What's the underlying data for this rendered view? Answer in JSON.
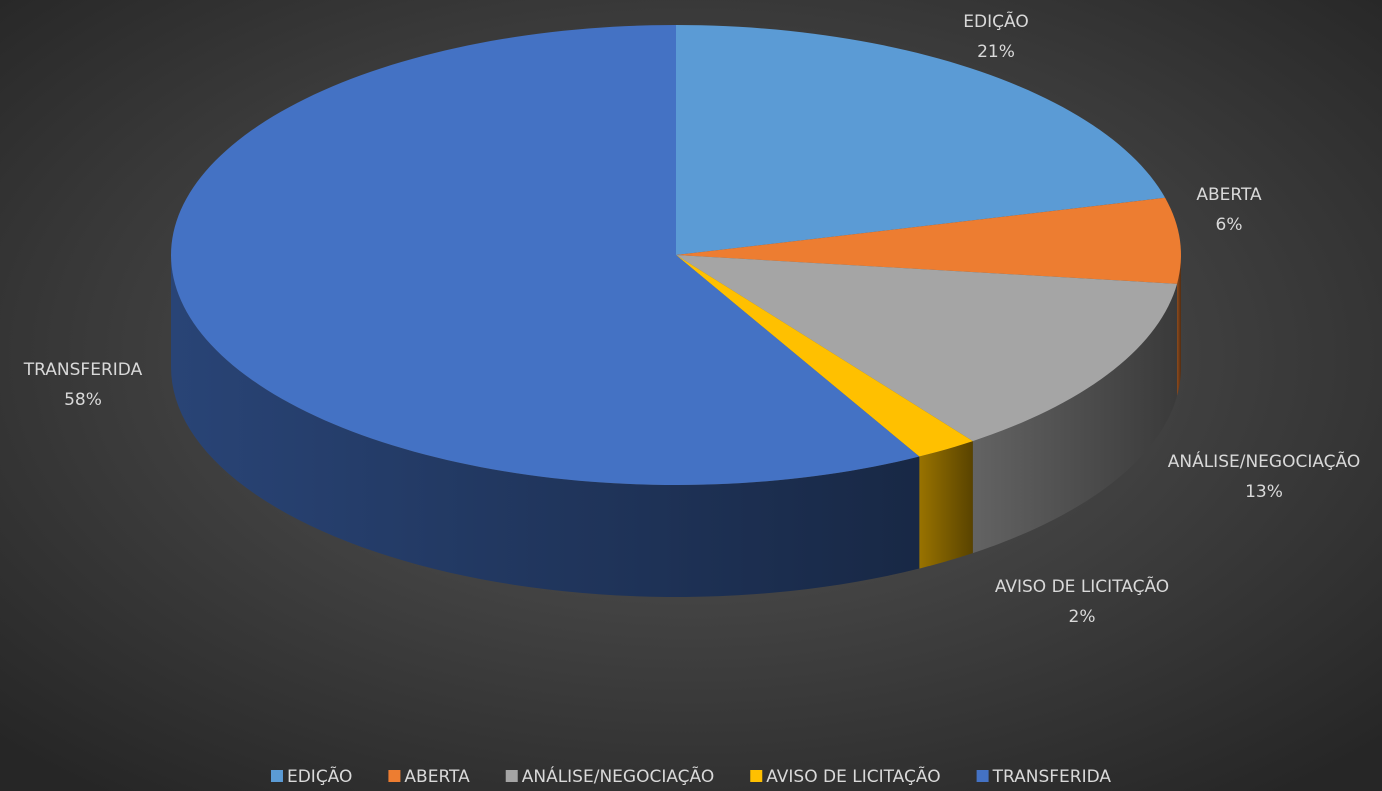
{
  "chart_data": {
    "type": "pie",
    "categories": [
      "EDIÇÃO",
      "ABERTA",
      "ANÁLISE/NEGOCIAÇÃO",
      "AVISO DE LICITAÇÃO",
      "TRANSFERIDA"
    ],
    "values": [
      21,
      6,
      13,
      2,
      58
    ],
    "value_labels": [
      "21%",
      "6%",
      "13%",
      "2%",
      "58%"
    ],
    "colors": [
      "#5b9bd5",
      "#ed7d31",
      "#a5a5a5",
      "#ffc000",
      "#4472c4"
    ],
    "legend": "bottom"
  }
}
